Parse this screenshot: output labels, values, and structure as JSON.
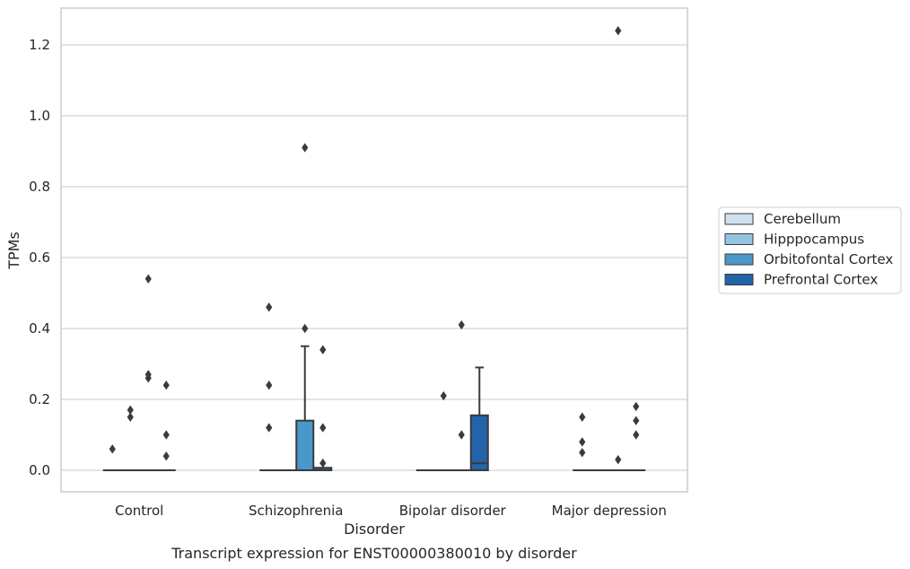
{
  "chart_data": {
    "type": "box",
    "title": "",
    "caption": "Transcript expression for ENST00000380010 by disorder",
    "xlabel": "Disorder",
    "ylabel": "TPMs",
    "ylim": [
      -0.06,
      1.3
    ],
    "yticks": [
      0.0,
      0.2,
      0.4,
      0.6,
      0.8,
      1.0,
      1.2
    ],
    "ytick_labels": [
      "0.0",
      "0.2",
      "0.4",
      "0.6",
      "0.8",
      "1.0",
      "1.2"
    ],
    "grid": "horizontal",
    "legend_position": "right",
    "categories": [
      "Control",
      "Schizophrenia",
      "Bipolar disorder",
      "Major depression"
    ],
    "series": [
      {
        "name": "Cerebellum",
        "color": "#d0e1f2",
        "boxes": [
          {
            "q1": 0,
            "median": 0,
            "q3": 0,
            "whisker_low": 0,
            "whisker_high": 0,
            "outliers": [
              0.06
            ]
          },
          {
            "q1": 0,
            "median": 0,
            "q3": 0,
            "whisker_low": 0,
            "whisker_high": 0,
            "outliers": [
              0.12,
              0.24,
              0.46
            ]
          },
          {
            "q1": 0,
            "median": 0,
            "q3": 0,
            "whisker_low": 0,
            "whisker_high": 0,
            "outliers": []
          },
          {
            "q1": 0,
            "median": 0,
            "q3": 0,
            "whisker_low": 0,
            "whisker_high": 0,
            "outliers": [
              0.05,
              0.08,
              0.15
            ]
          }
        ]
      },
      {
        "name": "Hipppocampus",
        "color": "#94c4df",
        "boxes": [
          {
            "q1": 0,
            "median": 0,
            "q3": 0,
            "whisker_low": 0,
            "whisker_high": 0,
            "outliers": [
              0.15,
              0.17
            ]
          },
          {
            "q1": 0,
            "median": 0,
            "q3": 0,
            "whisker_low": 0,
            "whisker_high": 0,
            "outliers": []
          },
          {
            "q1": 0,
            "median": 0,
            "q3": 0,
            "whisker_low": 0,
            "whisker_high": 0,
            "outliers": [
              0.21
            ]
          },
          {
            "q1": 0,
            "median": 0,
            "q3": 0,
            "whisker_low": 0,
            "whisker_high": 0,
            "outliers": []
          }
        ]
      },
      {
        "name": "Orbitofontal Cortex",
        "color": "#4a98c9",
        "boxes": [
          {
            "q1": 0,
            "median": 0,
            "q3": 0,
            "whisker_low": 0,
            "whisker_high": 0,
            "outliers": [
              0.26,
              0.27,
              0.54
            ]
          },
          {
            "q1": 0,
            "median": 0,
            "q3": 0.14,
            "whisker_low": 0,
            "whisker_high": 0.35,
            "outliers": [
              0.4,
              0.91
            ]
          },
          {
            "q1": 0,
            "median": 0,
            "q3": 0,
            "whisker_low": 0,
            "whisker_high": 0,
            "outliers": [
              0.1,
              0.41
            ]
          },
          {
            "q1": 0,
            "median": 0,
            "q3": 0,
            "whisker_low": 0,
            "whisker_high": 0,
            "outliers": [
              0.03,
              1.24
            ]
          }
        ]
      },
      {
        "name": "Prefrontal Cortex",
        "color": "#2363a9",
        "boxes": [
          {
            "q1": 0,
            "median": 0,
            "q3": 0,
            "whisker_low": 0,
            "whisker_high": 0,
            "outliers": [
              0.04,
              0.1,
              0.24
            ]
          },
          {
            "q1": 0,
            "median": 0,
            "q3": 0.007,
            "whisker_low": 0,
            "whisker_high": 0.007,
            "outliers": [
              0.02,
              0.12,
              0.34
            ]
          },
          {
            "q1": 0,
            "median": 0.02,
            "q3": 0.155,
            "whisker_low": 0,
            "whisker_high": 0.29,
            "outliers": []
          },
          {
            "q1": 0,
            "median": 0,
            "q3": 0,
            "whisker_low": 0,
            "whisker_high": 0,
            "outliers": [
              0.1,
              0.14,
              0.18
            ]
          }
        ]
      }
    ]
  }
}
